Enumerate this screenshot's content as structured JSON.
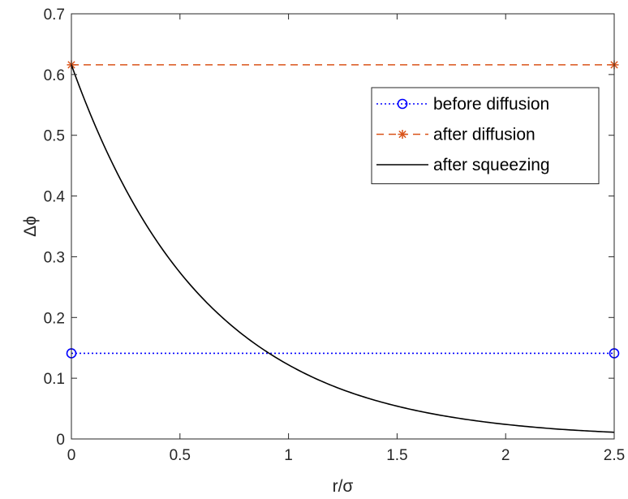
{
  "chart_data": {
    "type": "line",
    "title": "",
    "xlabel": "r/σ",
    "ylabel": "Δϕ",
    "xlim": [
      0,
      2.5
    ],
    "ylim": [
      0,
      0.7
    ],
    "xticks": [
      0,
      0.5,
      1,
      1.5,
      2,
      2.5
    ],
    "xtick_labels": [
      "0",
      "0.5",
      "1",
      "1.5",
      "2",
      "2.5"
    ],
    "yticks": [
      0,
      0.1,
      0.2,
      0.3,
      0.4,
      0.5,
      0.6,
      0.7
    ],
    "ytick_labels": [
      "0",
      "0.1",
      "0.2",
      "0.3",
      "0.4",
      "0.5",
      "0.6",
      "0.7"
    ],
    "grid": false,
    "legend_position": "top-right",
    "series": [
      {
        "name": "before diffusion",
        "style": "dotted",
        "marker": "circle",
        "color": "#0000ff",
        "x": [
          0,
          2.5
        ],
        "y": [
          0.141,
          0.141
        ]
      },
      {
        "name": "after diffusion",
        "style": "dashed",
        "marker": "asterisk",
        "color": "#d95319",
        "x": [
          0,
          2.5
        ],
        "y": [
          0.616,
          0.616
        ]
      },
      {
        "name": "after squeezing",
        "style": "solid",
        "marker": "none",
        "color": "#000000",
        "x": [
          0,
          0.25,
          0.5,
          0.75,
          1.0,
          1.25,
          1.5,
          1.75,
          2.0,
          2.25,
          2.5
        ],
        "y": [
          0.616,
          0.411,
          0.274,
          0.183,
          0.122,
          0.081,
          0.054,
          0.036,
          0.024,
          0.016,
          0.011
        ]
      }
    ]
  }
}
